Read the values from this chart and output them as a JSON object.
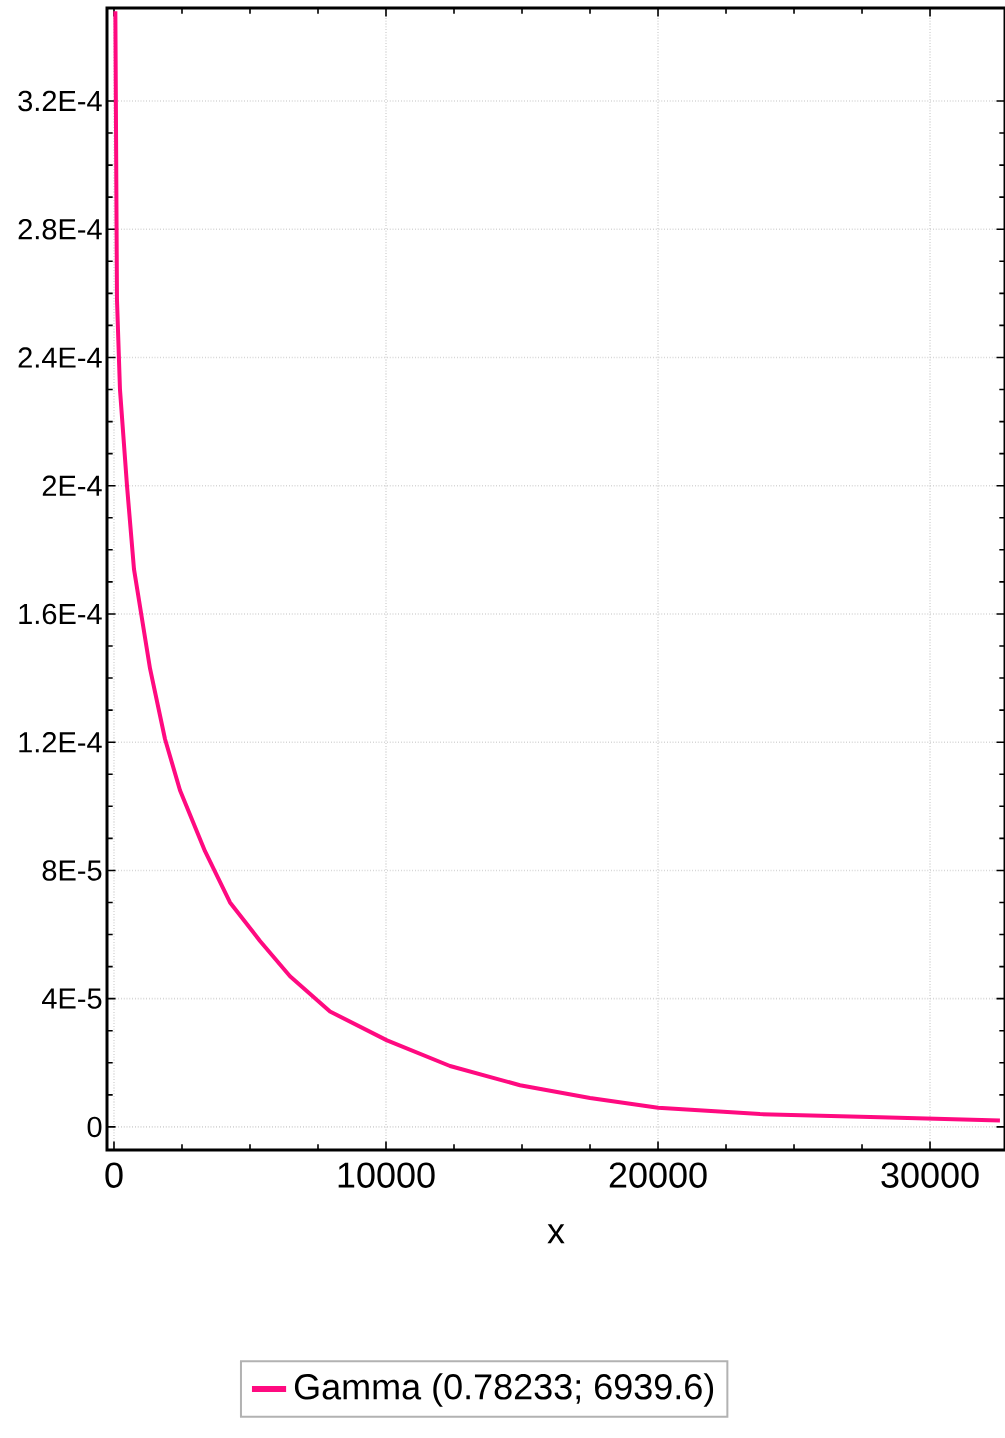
{
  "chart_data": {
    "type": "line",
    "xlabel": "x",
    "xlim": [
      -257,
      32757
    ],
    "ylim": [
      -7.2e-06,
      0.000349
    ],
    "xticks": [
      0,
      10000,
      20000,
      30000
    ],
    "yticks": [
      {
        "value": 0,
        "label": "0"
      },
      {
        "value": 4e-05,
        "label": "4E-5"
      },
      {
        "value": 8e-05,
        "label": "8E-5"
      },
      {
        "value": 0.00012,
        "label": "1.2E-4"
      },
      {
        "value": 0.00016,
        "label": "1.6E-4"
      },
      {
        "value": 0.0002,
        "label": "2E-4"
      },
      {
        "value": 0.00024,
        "label": "2.4E-4"
      },
      {
        "value": 0.00028,
        "label": "2.8E-4"
      },
      {
        "value": 0.00032,
        "label": "3.2E-4"
      }
    ],
    "grid": true,
    "legend": "bottom",
    "marker": "none",
    "line_style": "solid",
    "series": [
      {
        "name": "Gamma  (0.78233; 6939.6)",
        "color": "#ff0a80",
        "x": [
          50,
          110,
          220,
          478,
          735,
          1324,
          1875,
          2426,
          3346,
          4265,
          5368,
          6471,
          7941,
          10037,
          12353,
          14926,
          17500,
          20000,
          23750,
          28162,
          32570
        ],
        "values": [
          0.000348,
          0.000258,
          0.00023,
          0.0002,
          0.000174,
          0.000143,
          0.000121,
          0.000105,
          8.6e-05,
          7e-05,
          5.8e-05,
          4.7e-05,
          3.6e-05,
          2.7e-05,
          1.9e-05,
          1.3e-05,
          9e-06,
          6e-06,
          4e-06,
          3e-06,
          2e-06
        ]
      }
    ]
  }
}
